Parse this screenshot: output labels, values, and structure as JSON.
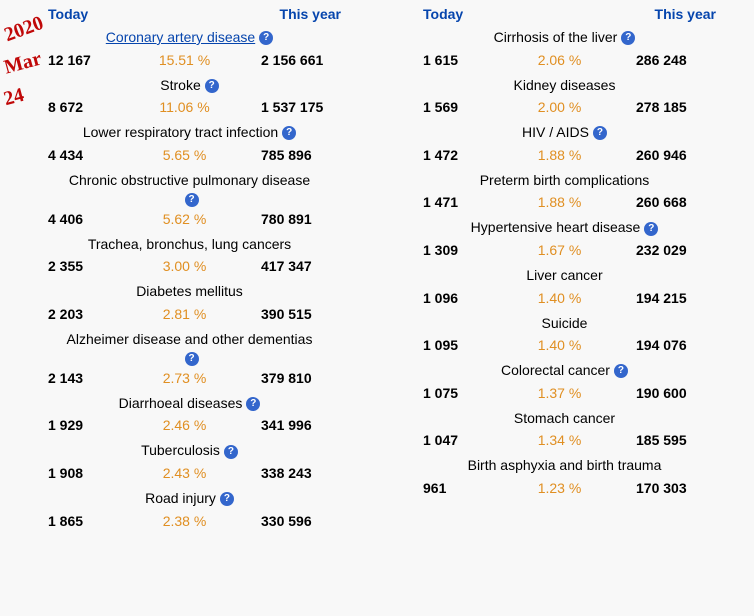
{
  "annotations": {
    "line1": "2020",
    "line2": "Mar",
    "line3": "24"
  },
  "headers": {
    "today": "Today",
    "thisYear": "This year"
  },
  "infoGlyph": "?",
  "left": [
    {
      "title": "Coronary artery disease",
      "link": true,
      "info": true,
      "today": "12 167",
      "pct": "15.51 %",
      "year": "2 156 661"
    },
    {
      "title": "Stroke",
      "link": false,
      "info": true,
      "today": "8 672",
      "pct": "11.06 %",
      "year": "1 537 175"
    },
    {
      "title": "Lower respiratory tract infection",
      "link": false,
      "info": true,
      "today": "4 434",
      "pct": "5.65 %",
      "year": "785 896"
    },
    {
      "title": "Chronic obstructive pulmonary disease",
      "link": false,
      "info": true,
      "wrap": true,
      "today": "4 406",
      "pct": "5.62 %",
      "year": "780 891"
    },
    {
      "title": "Trachea, bronchus, lung cancers",
      "link": false,
      "info": false,
      "today": "2 355",
      "pct": "3.00 %",
      "year": "417 347"
    },
    {
      "title": "Diabetes mellitus",
      "link": false,
      "info": false,
      "today": "2 203",
      "pct": "2.81 %",
      "year": "390 515"
    },
    {
      "title": "Alzheimer disease and other dementias",
      "link": false,
      "info": true,
      "wrap": true,
      "today": "2 143",
      "pct": "2.73 %",
      "year": "379 810"
    },
    {
      "title": "Diarrhoeal diseases",
      "link": false,
      "info": true,
      "today": "1 929",
      "pct": "2.46 %",
      "year": "341 996"
    },
    {
      "title": "Tuberculosis",
      "link": false,
      "info": true,
      "today": "1 908",
      "pct": "2.43 %",
      "year": "338 243"
    },
    {
      "title": "Road injury",
      "link": false,
      "info": true,
      "today": "1 865",
      "pct": "2.38 %",
      "year": "330 596"
    }
  ],
  "right": [
    {
      "title": "Cirrhosis of the liver",
      "link": false,
      "info": true,
      "today": "1 615",
      "pct": "2.06 %",
      "year": "286 248"
    },
    {
      "title": "Kidney diseases",
      "link": false,
      "info": false,
      "today": "1 569",
      "pct": "2.00 %",
      "year": "278 185"
    },
    {
      "title": "HIV / AIDS",
      "link": false,
      "info": true,
      "today": "1 472",
      "pct": "1.88 %",
      "year": "260 946"
    },
    {
      "title": "Preterm birth complications",
      "link": false,
      "info": false,
      "today": "1 471",
      "pct": "1.88 %",
      "year": "260 668"
    },
    {
      "title": "Hypertensive heart disease",
      "link": false,
      "info": true,
      "today": "1 309",
      "pct": "1.67 %",
      "year": "232 029"
    },
    {
      "title": "Liver cancer",
      "link": false,
      "info": false,
      "today": "1 096",
      "pct": "1.40 %",
      "year": "194 215"
    },
    {
      "title": "Suicide",
      "link": false,
      "info": false,
      "today": "1 095",
      "pct": "1.40 %",
      "year": "194 076"
    },
    {
      "title": "Colorectal cancer",
      "link": false,
      "info": true,
      "today": "1 075",
      "pct": "1.37 %",
      "year": "190 600"
    },
    {
      "title": "Stomach cancer",
      "link": false,
      "info": false,
      "today": "1 047",
      "pct": "1.34 %",
      "year": "185 595"
    },
    {
      "title": "Birth asphyxia and birth trauma",
      "link": false,
      "info": false,
      "today": "961",
      "pct": "1.23 %",
      "year": "170 303"
    }
  ]
}
